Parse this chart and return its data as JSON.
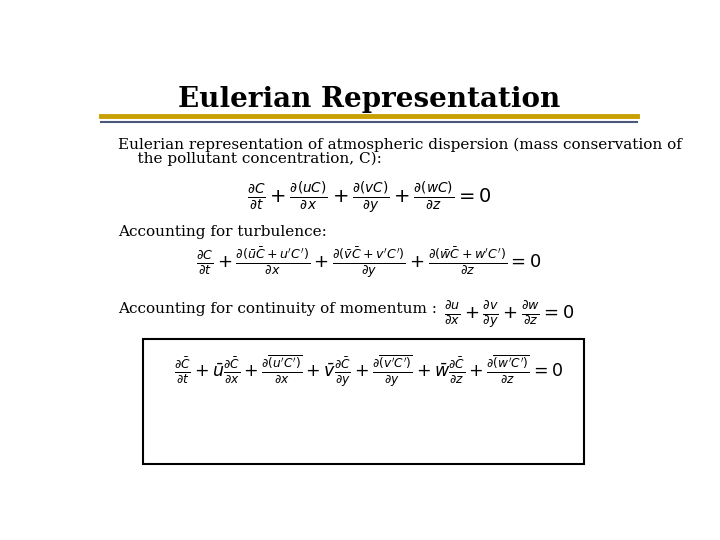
{
  "title": "Eulerian Representation",
  "title_fontsize": 20,
  "title_color": "#000000",
  "bg_color": "#ffffff",
  "line1_color": "#C8A000",
  "line2_color": "#4B5A7A",
  "text_intro_line1": "Eulerian representation of atmospheric dispersion (mass conservation of",
  "text_intro_line2": "    the pollutant concentration, C):",
  "label_turbulence": "Accounting for turbulence:",
  "label_momentum": "Accounting for continuity of momentum : ",
  "text_fontsize": 11,
  "eq_fontsize": 13,
  "box_color": "#000000"
}
